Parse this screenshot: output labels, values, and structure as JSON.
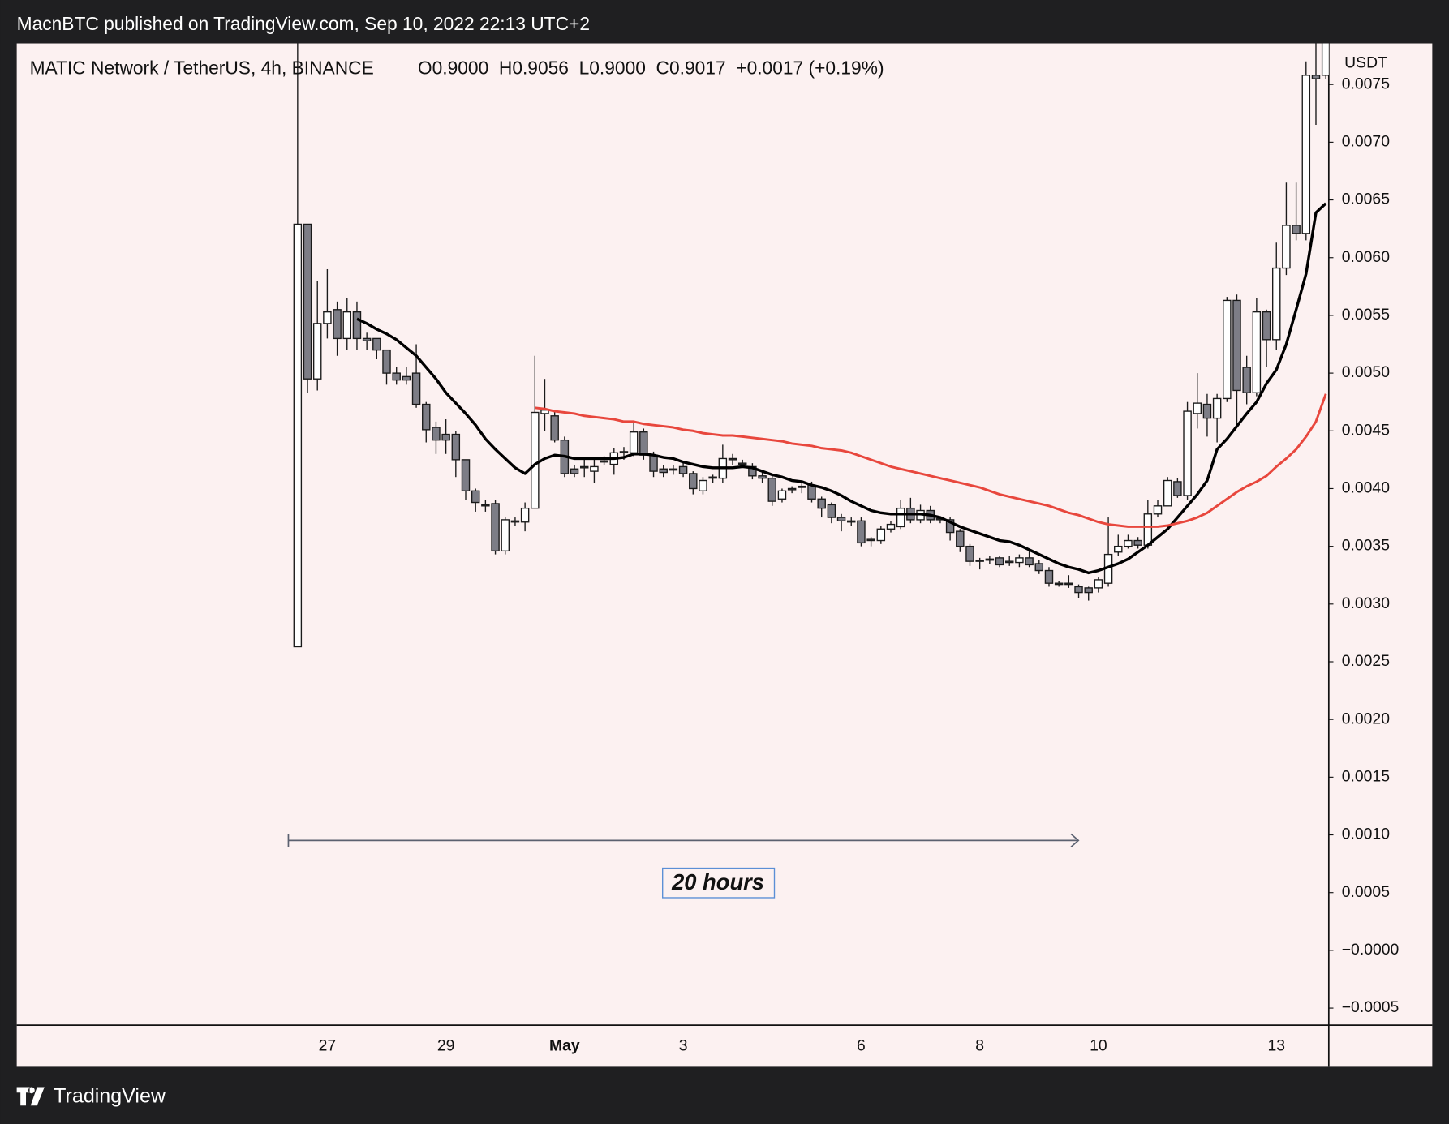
{
  "header": {
    "publisher": "MacnBTC published on TradingView.com, Sep 10, 2022 22:13 UTC+2"
  },
  "footer": {
    "brand": "TradingView"
  },
  "chart_data": {
    "type": "candlestick",
    "title": "MATIC Network / TetherUS, 4h, BINANCE",
    "subtitle": "O0.9000  H0.9056  L0.9000  C0.9017  +0.0017 (+0.19%)",
    "y_axis_label": "USDT",
    "annotation": "20 hours",
    "up_color": "#ffffff",
    "down_color": "#7d7d86",
    "grid": false,
    "ylim": [
      -0.000648,
      0.007856
    ],
    "yticks": [
      {
        "value": 0.0075,
        "label": "0.0075"
      },
      {
        "value": 0.007,
        "label": "0.0070"
      },
      {
        "value": 0.0065,
        "label": "0.0065"
      },
      {
        "value": 0.006,
        "label": "0.0060"
      },
      {
        "value": 0.0055,
        "label": "0.0055"
      },
      {
        "value": 0.005,
        "label": "0.0050"
      },
      {
        "value": 0.0045,
        "label": "0.0045"
      },
      {
        "value": 0.004,
        "label": "0.0040"
      },
      {
        "value": 0.0035,
        "label": "0.0035"
      },
      {
        "value": 0.003,
        "label": "0.0030"
      },
      {
        "value": 0.0025,
        "label": "0.0025"
      },
      {
        "value": 0.002,
        "label": "0.0020"
      },
      {
        "value": 0.0015,
        "label": "0.0015"
      },
      {
        "value": 0.001,
        "label": "0.0010"
      },
      {
        "value": 0.0005,
        "label": "0.0005"
      },
      {
        "value": 0,
        "label": "−0.0000"
      },
      {
        "value": -0.0005,
        "label": "−0.0005"
      }
    ],
    "categories": [
      null,
      null,
      null,
      "27",
      null,
      null,
      null,
      null,
      null,
      null,
      null,
      null,
      null,
      null,
      null,
      "29",
      null,
      null,
      null,
      null,
      null,
      null,
      null,
      null,
      null,
      null,
      null,
      "May",
      null,
      null,
      null,
      null,
      null,
      null,
      null,
      null,
      null,
      null,
      null,
      "3",
      null,
      null,
      null,
      null,
      null,
      null,
      null,
      null,
      null,
      null,
      null,
      null,
      null,
      null,
      null,
      null,
      null,
      "6",
      null,
      null,
      null,
      null,
      null,
      null,
      null,
      null,
      null,
      null,
      null,
      "8",
      null,
      null,
      null,
      null,
      null,
      null,
      null,
      null,
      null,
      null,
      null,
      "10",
      null,
      null,
      null,
      null,
      null,
      null,
      null,
      null,
      null,
      null,
      null,
      null,
      null,
      null,
      null,
      null,
      null,
      "13",
      null,
      null,
      null,
      null,
      null
    ],
    "open": [
      0.00263,
      0.00629,
      0.00495,
      0.00543,
      0.00555,
      0.0053,
      0.00553,
      0.0053,
      0.0053,
      0.0052,
      0.005,
      0.00497,
      0.005,
      0.00473,
      0.00453,
      0.00447,
      0.00447,
      0.00425,
      0.00398,
      0.00386,
      0.00387,
      0.00346,
      0.00372,
      0.00371,
      0.00383,
      0.00465,
      0.00463,
      0.00442,
      0.00417,
      0.00419,
      0.00415,
      0.00423,
      0.00421,
      0.00431,
      0.00431,
      0.00449,
      0.00429,
      0.00417,
      0.00417,
      0.00419,
      0.00413,
      0.00398,
      0.0041,
      0.00409,
      0.00425,
      0.00421,
      0.00419,
      0.00411,
      0.00409,
      0.00391,
      0.00399,
      0.00401,
      0.00403,
      0.00391,
      0.00386,
      0.00375,
      0.00372,
      0.00372,
      0.00355,
      0.00355,
      0.00365,
      0.00367,
      0.00383,
      0.00373,
      0.00381,
      0.00374,
      0.00373,
      0.00363,
      0.0035,
      0.00338,
      0.00339,
      0.0034,
      0.00336,
      0.00336,
      0.0034,
      0.00335,
      0.00329,
      0.00318,
      0.00318,
      0.00315,
      0.00314,
      0.00314,
      0.00318,
      0.00345,
      0.0035,
      0.00355,
      0.00351,
      0.00378,
      0.00385,
      0.00406,
      0.00394,
      0.00465,
      0.00473,
      0.00461,
      0.00478,
      0.00563,
      0.00505,
      0.00483,
      0.00553,
      0.00529,
      0.00591,
      0.00628,
      0.00621,
      0.00758,
      0.00758
    ],
    "high": [
      0.0079,
      0.00629,
      0.0058,
      0.0059,
      0.00562,
      0.00565,
      0.00562,
      0.00535,
      0.0053,
      0.0052,
      0.00505,
      0.00505,
      0.00525,
      0.00475,
      0.00458,
      0.0046,
      0.0045,
      0.00425,
      0.004,
      0.0039,
      0.0039,
      0.00375,
      0.00375,
      0.00388,
      0.00515,
      0.00495,
      0.00468,
      0.00445,
      0.0042,
      0.00425,
      0.00425,
      0.00428,
      0.00435,
      0.00436,
      0.00458,
      0.00452,
      0.00432,
      0.0042,
      0.0042,
      0.00422,
      0.00415,
      0.0041,
      0.00412,
      0.00438,
      0.0043,
      0.00425,
      0.00422,
      0.00415,
      0.00412,
      0.004,
      0.00402,
      0.00405,
      0.00406,
      0.00393,
      0.00388,
      0.00378,
      0.00375,
      0.00375,
      0.00358,
      0.00368,
      0.00372,
      0.0039,
      0.00392,
      0.00386,
      0.00385,
      0.00376,
      0.00375,
      0.00365,
      0.00352,
      0.0034,
      0.00342,
      0.00342,
      0.00342,
      0.00343,
      0.00348,
      0.00338,
      0.00332,
      0.0032,
      0.00325,
      0.00317,
      0.00315,
      0.00323,
      0.00375,
      0.0036,
      0.0036,
      0.00358,
      0.0039,
      0.0039,
      0.0041,
      0.00409,
      0.00475,
      0.005,
      0.00482,
      0.00482,
      0.00566,
      0.00568,
      0.00515,
      0.00565,
      0.00555,
      0.00613,
      0.00665,
      0.00665,
      0.0077,
      0.0079,
      0.0079
    ],
    "low": [
      0.00263,
      0.00483,
      0.00485,
      0.0053,
      0.00515,
      0.0052,
      0.0052,
      0.0052,
      0.00512,
      0.0049,
      0.0049,
      0.0049,
      0.0047,
      0.0044,
      0.0043,
      0.0043,
      0.0041,
      0.0039,
      0.0038,
      0.0038,
      0.00343,
      0.00343,
      0.00368,
      0.00363,
      0.00383,
      0.0045,
      0.0044,
      0.0041,
      0.0041,
      0.0041,
      0.00405,
      0.0042,
      0.00412,
      0.00425,
      0.00428,
      0.00425,
      0.0041,
      0.0041,
      0.00412,
      0.0041,
      0.00395,
      0.00395,
      0.00405,
      0.00405,
      0.0042,
      0.00418,
      0.00408,
      0.00405,
      0.00385,
      0.00388,
      0.00396,
      0.00396,
      0.00388,
      0.00375,
      0.0037,
      0.00363,
      0.00368,
      0.0035,
      0.0035,
      0.00352,
      0.00362,
      0.00365,
      0.0037,
      0.0037,
      0.0037,
      0.0037,
      0.00355,
      0.00345,
      0.00333,
      0.0033,
      0.00335,
      0.00332,
      0.00333,
      0.00332,
      0.00332,
      0.00326,
      0.00315,
      0.00315,
      0.00314,
      0.00305,
      0.00303,
      0.0031,
      0.00315,
      0.00342,
      0.00348,
      0.00348,
      0.00348,
      0.00375,
      0.00385,
      0.00392,
      0.0039,
      0.00452,
      0.00445,
      0.0044,
      0.00475,
      0.00455,
      0.00473,
      0.0048,
      0.00505,
      0.0052,
      0.00585,
      0.00615,
      0.00615,
      0.00715,
      0.00755
    ],
    "close": [
      0.00629,
      0.00495,
      0.00543,
      0.00553,
      0.0053,
      0.00553,
      0.0053,
      0.00528,
      0.0052,
      0.005,
      0.00494,
      0.00494,
      0.00473,
      0.00451,
      0.00442,
      0.00442,
      0.00425,
      0.00398,
      0.00388,
      0.00385,
      0.00346,
      0.00373,
      0.00371,
      0.00383,
      0.00466,
      0.00468,
      0.00442,
      0.00413,
      0.00413,
      0.00418,
      0.00419,
      0.00424,
      0.00431,
      0.00432,
      0.00449,
      0.00429,
      0.00415,
      0.00414,
      0.00416,
      0.00413,
      0.004,
      0.00407,
      0.00409,
      0.00426,
      0.00426,
      0.00422,
      0.00411,
      0.00409,
      0.00389,
      0.00398,
      0.004,
      0.00402,
      0.00391,
      0.00383,
      0.00375,
      0.00372,
      0.00371,
      0.00353,
      0.00356,
      0.00365,
      0.00369,
      0.00383,
      0.00373,
      0.00381,
      0.00373,
      0.00373,
      0.00362,
      0.0035,
      0.00337,
      0.00337,
      0.00338,
      0.00334,
      0.00337,
      0.0034,
      0.00334,
      0.00329,
      0.00318,
      0.00317,
      0.00317,
      0.0031,
      0.0031,
      0.00321,
      0.00343,
      0.0035,
      0.00355,
      0.00351,
      0.00378,
      0.00385,
      0.00407,
      0.00394,
      0.00467,
      0.00474,
      0.00461,
      0.00478,
      0.00563,
      0.00485,
      0.00483,
      0.00553,
      0.00529,
      0.00591,
      0.00628,
      0.00621,
      0.00758,
      0.00755,
      0.0079
    ],
    "series": [
      {
        "color": "#000000",
        "values": [
          null,
          null,
          null,
          null,
          null,
          null,
          0.00547,
          0.00543,
          0.00538,
          0.00534,
          0.00529,
          0.00522,
          0.00515,
          0.00505,
          0.00495,
          0.00483,
          0.00474,
          0.00465,
          0.00455,
          0.00443,
          0.00434,
          0.00426,
          0.00418,
          0.00413,
          0.00421,
          0.00426,
          0.00429,
          0.00428,
          0.00426,
          0.00426,
          0.00426,
          0.00426,
          0.00426,
          0.00427,
          0.0043,
          0.0043,
          0.00429,
          0.00427,
          0.00426,
          0.00423,
          0.00421,
          0.00419,
          0.00418,
          0.00418,
          0.00418,
          0.00419,
          0.00418,
          0.00415,
          0.00412,
          0.0041,
          0.00407,
          0.00406,
          0.00403,
          0.00401,
          0.00398,
          0.00394,
          0.00389,
          0.00385,
          0.00381,
          0.00379,
          0.00378,
          0.00378,
          0.00378,
          0.00378,
          0.00377,
          0.00375,
          0.00371,
          0.00367,
          0.00364,
          0.00361,
          0.00358,
          0.00355,
          0.00354,
          0.00351,
          0.00347,
          0.00343,
          0.00339,
          0.00335,
          0.00332,
          0.0033,
          0.00327,
          0.00329,
          0.00332,
          0.00335,
          0.00339,
          0.00345,
          0.00351,
          0.00358,
          0.00365,
          0.00375,
          0.00385,
          0.00395,
          0.00407,
          0.00434,
          0.00443,
          0.00454,
          0.00465,
          0.00475,
          0.00491,
          0.00503,
          0.00525,
          0.00555,
          0.00586,
          0.00639,
          0.00647
        ]
      },
      {
        "color": "#e8473d",
        "values": [
          null,
          null,
          null,
          null,
          null,
          null,
          null,
          null,
          null,
          null,
          null,
          null,
          null,
          null,
          null,
          null,
          null,
          null,
          null,
          null,
          null,
          null,
          null,
          null,
          0.0047,
          0.00469,
          0.00467,
          0.00466,
          0.00465,
          0.00463,
          0.00462,
          0.00461,
          0.0046,
          0.00458,
          0.00458,
          0.00456,
          0.00455,
          0.00454,
          0.00453,
          0.00451,
          0.0045,
          0.00448,
          0.00447,
          0.00446,
          0.00446,
          0.00445,
          0.00444,
          0.00443,
          0.00442,
          0.00441,
          0.00439,
          0.00438,
          0.00437,
          0.00435,
          0.00434,
          0.00433,
          0.00431,
          0.00428,
          0.00425,
          0.00422,
          0.00419,
          0.00417,
          0.00415,
          0.00413,
          0.00411,
          0.00409,
          0.00407,
          0.00405,
          0.00403,
          0.00401,
          0.00398,
          0.00395,
          0.00393,
          0.00391,
          0.00389,
          0.00387,
          0.00385,
          0.00382,
          0.00379,
          0.00377,
          0.00374,
          0.00371,
          0.00369,
          0.00368,
          0.00367,
          0.00367,
          0.00367,
          0.00367,
          0.00368,
          0.0037,
          0.00372,
          0.00375,
          0.00379,
          0.00385,
          0.00391,
          0.00397,
          0.00402,
          0.00406,
          0.00411,
          0.00419,
          0.00426,
          0.00434,
          0.00445,
          0.00458,
          0.00482
        ]
      }
    ]
  }
}
